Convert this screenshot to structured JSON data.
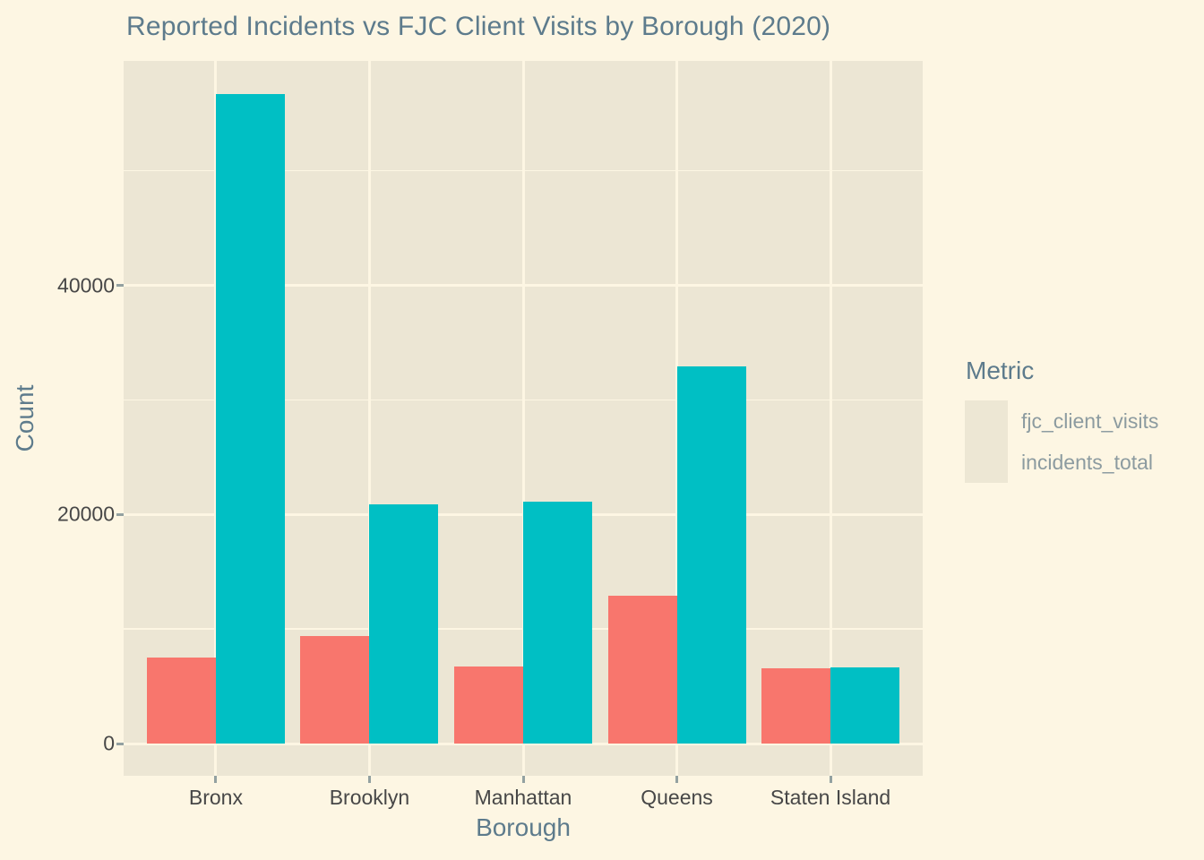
{
  "title": "Reported Incidents vs FJC Client Visits by Borough (2020)",
  "chart_data": {
    "type": "bar",
    "title": "Reported Incidents vs FJC Client Visits by Borough (2020)",
    "xlabel": "Borough",
    "ylabel": "Count",
    "categories": [
      "Bronx",
      "Brooklyn",
      "Manhattan",
      "Queens",
      "Staten Island"
    ],
    "series": [
      {
        "name": "fjc_client_visits",
        "color": "#F8766D",
        "values": [
          7500,
          9400,
          6700,
          12900,
          6550
        ]
      },
      {
        "name": "incidents_total",
        "color": "#00BFC4",
        "values": [
          56700,
          20900,
          21100,
          32900,
          6650
        ]
      }
    ],
    "ylim": [
      0,
      59600
    ],
    "yticks": [
      0,
      20000,
      40000
    ],
    "yminorticks": [
      10000,
      30000,
      50000
    ],
    "grid": "on",
    "legend_title": "Metric",
    "legend_position": "right"
  },
  "legend": {
    "title": "Metric",
    "items": [
      {
        "label": "fjc_client_visits",
        "color": "#F8766D"
      },
      {
        "label": "incidents_total",
        "color": "#00BFC4"
      }
    ]
  },
  "axes": {
    "x_title": "Borough",
    "y_title": "Count",
    "x_tick_labels": [
      "Bronx",
      "Brooklyn",
      "Manhattan",
      "Queens",
      "Staten Island"
    ],
    "y_tick_labels": [
      "0",
      "20000",
      "40000"
    ]
  },
  "colors": {
    "background": "#FDF6E3",
    "panel": "#ECE6D4",
    "grid": "#FDF6E3",
    "heading_text": "#5D7B8C",
    "tick_text": "#474747",
    "tick_mark": "#93A1A1",
    "legend_text": "#8C9BA0",
    "legend_key_bg": "#EDE7D4",
    "series_coral": "#F8766D",
    "series_teal": "#00BFC4"
  }
}
